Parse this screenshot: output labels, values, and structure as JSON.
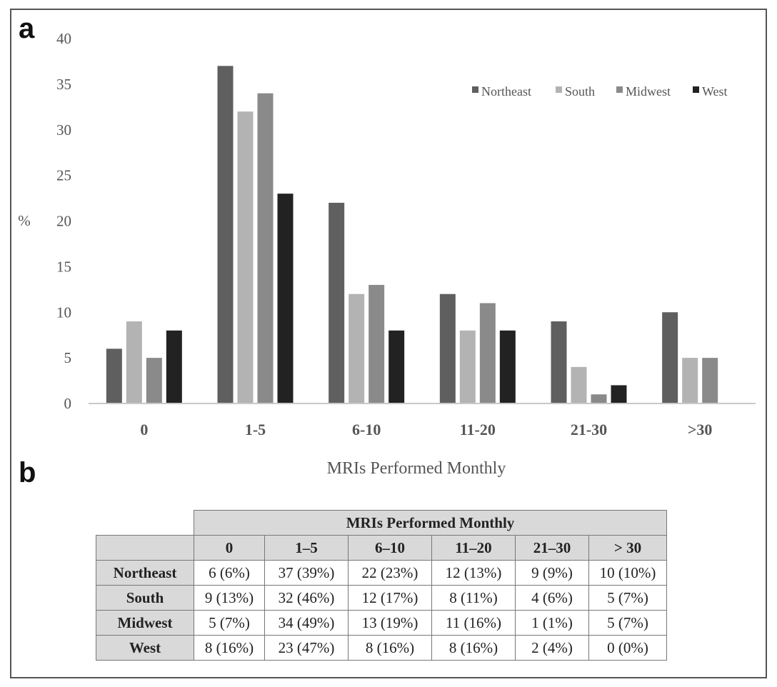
{
  "panel_labels": {
    "a": "a",
    "b": "b"
  },
  "chart_data": {
    "type": "bar",
    "title": "",
    "xlabel": "MRIs Performed Monthly",
    "ylabel": "%",
    "categories": [
      "0",
      "1-5",
      "6-10",
      "11-20",
      "21-30",
      ">30"
    ],
    "ylim": [
      0,
      40
    ],
    "yticks": [
      0,
      5,
      10,
      15,
      20,
      25,
      30,
      35,
      40
    ],
    "grid": false,
    "legend_position": "top-right",
    "series": [
      {
        "name": "Northeast",
        "color": "#5f5f5f",
        "values": [
          6,
          37,
          22,
          12,
          9,
          10
        ]
      },
      {
        "name": "South",
        "color": "#b3b3b3",
        "values": [
          9,
          32,
          12,
          8,
          4,
          5
        ]
      },
      {
        "name": "Midwest",
        "color": "#8a8a8a",
        "values": [
          5,
          34,
          13,
          11,
          1,
          5
        ]
      },
      {
        "name": "West",
        "color": "#222222",
        "values": [
          8,
          23,
          8,
          8,
          2,
          null
        ]
      }
    ]
  },
  "table": {
    "group_header": "MRIs Performed Monthly",
    "columns": [
      "0",
      "1–5",
      "6–10",
      "11–20",
      "21–30",
      "> 30"
    ],
    "rows": [
      {
        "region": "Northeast",
        "cells": [
          "6 (6%)",
          "37 (39%)",
          "22 (23%)",
          "12 (13%)",
          "9 (9%)",
          "10 (10%)"
        ]
      },
      {
        "region": "South",
        "cells": [
          "9 (13%)",
          "32 (46%)",
          "12 (17%)",
          "8 (11%)",
          "4 (6%)",
          "5 (7%)"
        ]
      },
      {
        "region": "Midwest",
        "cells": [
          "5 (7%)",
          "34 (49%)",
          "13 (19%)",
          "11 (16%)",
          "1 (1%)",
          "5 (7%)"
        ]
      },
      {
        "region": "West",
        "cells": [
          "8 (16%)",
          "23 (47%)",
          "8 (16%)",
          "8 (16%)",
          "2 (4%)",
          "0 (0%)"
        ]
      }
    ]
  }
}
